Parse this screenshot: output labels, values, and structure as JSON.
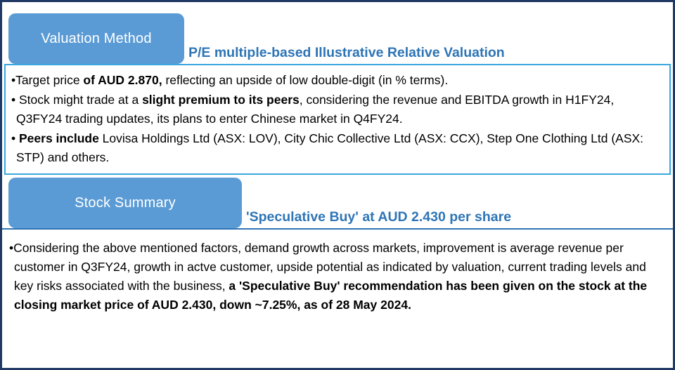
{
  "panel": {
    "outer_border_color": "#1f3864",
    "tab_fill_color": "#5b9bd5",
    "heading_text_color": "#2e75b6",
    "points_box_border_color": "#38a6de"
  },
  "valuation": {
    "tab_label": "Valuation Method",
    "heading": "P/E multiple-based Illustrative Relative Valuation",
    "bullets": [
      {
        "segments": [
          "•Target price ",
          "of AUD 2.870,",
          " reflecting an upside of low double-digit (in % terms)."
        ]
      },
      {
        "segments": [
          "• Stock might trade at a ",
          "slight premium to its peers",
          ", considering the revenue and EBITDA growth in H1FY24, Q3FY24 trading updates, its plans to enter Chinese market in Q4FY24."
        ]
      },
      {
        "segments": [
          "• ",
          "Peers include",
          " Lovisa Holdings Ltd (ASX: LOV), City Chic Collective Ltd (ASX: CCX), Step One Clothing Ltd (ASX: STP) and others."
        ]
      }
    ]
  },
  "summary": {
    "tab_label": "Stock Summary",
    "heading": "'Speculative Buy' at AUD 2.430 per share",
    "bullets": [
      {
        "segments": [
          "•Considering the above mentioned factors, demand growth across markets, improvement is average revenue per customer in Q3FY24, growth in actve customer, upside potential as indicated by valuation, current trading levels and key risks associated with the business, ",
          "a 'Speculative Buy' recommendation has been given on the stock at the closing market price of AUD 2.430, down ~7.25%, as of 28 May 2024."
        ]
      }
    ]
  }
}
